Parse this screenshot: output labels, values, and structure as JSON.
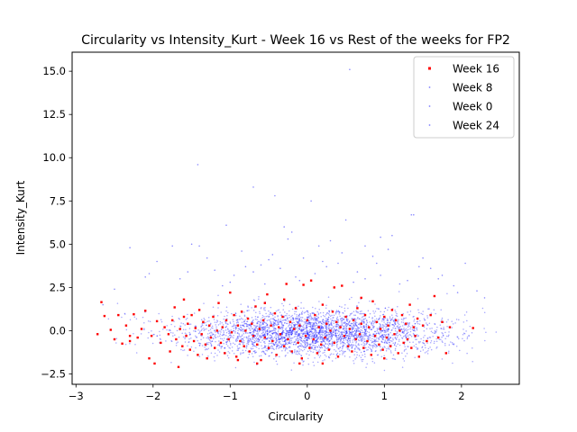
{
  "chart_data": {
    "type": "scatter",
    "title": "Circularity vs Intensity_Kurt - Week 16 vs Rest of the weeks for FP2",
    "xlabel": "Circularity",
    "ylabel": "Intensity_Kurt",
    "xlim": [
      -3.05,
      2.75
    ],
    "ylim": [
      -3.1,
      16.1
    ],
    "xticks": [
      -3,
      -2,
      -1,
      0,
      1,
      2
    ],
    "xtick_labels": [
      "−3",
      "−2",
      "−1",
      "0",
      "1",
      "2"
    ],
    "yticks": [
      -2.5,
      0.0,
      2.5,
      5.0,
      7.5,
      10.0,
      12.5,
      15.0
    ],
    "ytick_labels": [
      "−2.5",
      "0.0",
      "2.5",
      "5.0",
      "7.5",
      "10.0",
      "12.5",
      "15.0"
    ],
    "grid": false,
    "legend_position": "top-right",
    "series_colors": {
      "Week 16": "#ff0000",
      "Week 8": "#0000ff",
      "Week 0": "#0000ff",
      "Week 24": "#0000ff"
    },
    "series": [
      {
        "name": "Week 16",
        "color": "#ff0000",
        "points": [
          [
            -2.72,
            -0.2
          ],
          [
            -2.67,
            1.65
          ],
          [
            -2.63,
            0.85
          ],
          [
            -2.55,
            0.05
          ],
          [
            -2.5,
            -0.5
          ],
          [
            -2.45,
            0.9
          ],
          [
            -2.4,
            -0.75
          ],
          [
            -2.35,
            0.3
          ],
          [
            -2.3,
            -0.6
          ],
          [
            -2.25,
            0.95
          ],
          [
            -2.2,
            -0.4
          ],
          [
            -2.15,
            0.1
          ],
          [
            -2.1,
            1.15
          ],
          [
            -2.05,
            -1.6
          ],
          [
            -2.02,
            -0.3
          ],
          [
            -1.98,
            -1.9
          ],
          [
            -1.95,
            0.55
          ],
          [
            -1.9,
            -0.7
          ],
          [
            -1.85,
            0.2
          ],
          [
            -1.8,
            -0.2
          ],
          [
            -1.78,
            -1.2
          ],
          [
            -1.75,
            0.6
          ],
          [
            -1.72,
            1.35
          ],
          [
            -1.7,
            -0.5
          ],
          [
            -1.67,
            -2.1
          ],
          [
            -1.65,
            0.1
          ],
          [
            -1.62,
            -0.9
          ],
          [
            -1.6,
            1.8
          ],
          [
            -1.57,
            -0.3
          ],
          [
            -1.55,
            0.4
          ],
          [
            -1.52,
            -1.1
          ],
          [
            -1.5,
            0.9
          ],
          [
            -1.47,
            -0.6
          ],
          [
            -1.45,
            0.15
          ],
          [
            -1.42,
            -1.4
          ],
          [
            -1.4,
            1.2
          ],
          [
            -1.37,
            -0.2
          ],
          [
            -1.35,
            0.5
          ],
          [
            -1.32,
            -0.8
          ],
          [
            -1.3,
            -1.6
          ],
          [
            -1.27,
            0.3
          ],
          [
            -1.25,
            -0.4
          ],
          [
            -1.22,
            0.8
          ],
          [
            -1.2,
            -1.0
          ],
          [
            -1.17,
            0.0
          ],
          [
            -1.15,
            1.6
          ],
          [
            -1.12,
            -0.7
          ],
          [
            -1.1,
            0.2
          ],
          [
            -1.07,
            -1.3
          ],
          [
            -1.05,
            0.6
          ],
          [
            -1.02,
            -0.5
          ],
          [
            -1.0,
            2.2
          ],
          [
            -0.98,
            -0.1
          ],
          [
            -0.95,
            0.9
          ],
          [
            -0.92,
            -1.5
          ],
          [
            -0.9,
            0.3
          ],
          [
            -0.87,
            -0.6
          ],
          [
            -0.85,
            1.1
          ],
          [
            -0.82,
            -0.9
          ],
          [
            -0.8,
            0.0
          ],
          [
            -0.77,
            0.7
          ],
          [
            -0.75,
            -1.2
          ],
          [
            -0.72,
            0.4
          ],
          [
            -0.7,
            -0.3
          ],
          [
            -0.67,
            1.4
          ],
          [
            -0.65,
            -0.8
          ],
          [
            -0.62,
            0.1
          ],
          [
            -0.6,
            -1.7
          ],
          [
            -0.57,
            0.6
          ],
          [
            -0.55,
            -0.4
          ],
          [
            -0.52,
            2.1
          ],
          [
            -0.5,
            -1.0
          ],
          [
            -0.47,
            0.3
          ],
          [
            -0.45,
            -0.6
          ],
          [
            -0.42,
            1.0
          ],
          [
            -0.4,
            -1.4
          ],
          [
            -0.37,
            0.2
          ],
          [
            -0.35,
            -0.2
          ],
          [
            -0.32,
            0.8
          ],
          [
            -0.3,
            -0.9
          ],
          [
            -0.27,
            2.7
          ],
          [
            -0.25,
            -0.5
          ],
          [
            -0.22,
            0.5
          ],
          [
            -0.2,
            -1.2
          ],
          [
            -0.17,
            0.1
          ],
          [
            -0.15,
            1.3
          ],
          [
            -0.12,
            -0.7
          ],
          [
            -0.1,
            0.3
          ],
          [
            -0.07,
            -1.6
          ],
          [
            -0.05,
            2.65
          ],
          [
            -0.02,
            -0.3
          ],
          [
            0.0,
            0.6
          ],
          [
            0.03,
            -1.0
          ],
          [
            0.05,
            2.9
          ],
          [
            0.08,
            -0.5
          ],
          [
            0.1,
            0.9
          ],
          [
            0.13,
            -1.3
          ],
          [
            0.15,
            0.2
          ],
          [
            0.18,
            -0.8
          ],
          [
            0.2,
            1.5
          ],
          [
            0.23,
            -0.4
          ],
          [
            0.25,
            0.4
          ],
          [
            0.28,
            -1.1
          ],
          [
            0.3,
            0.0
          ],
          [
            0.33,
            1.1
          ],
          [
            0.35,
            -0.7
          ],
          [
            0.38,
            0.5
          ],
          [
            0.4,
            -1.5
          ],
          [
            0.43,
            0.2
          ],
          [
            0.45,
            2.6
          ],
          [
            0.48,
            -0.3
          ],
          [
            0.5,
            0.8
          ],
          [
            0.53,
            -0.9
          ],
          [
            0.55,
            0.1
          ],
          [
            0.58,
            -1.2
          ],
          [
            0.6,
            0.6
          ],
          [
            0.63,
            -0.5
          ],
          [
            0.65,
            1.3
          ],
          [
            0.68,
            -0.2
          ],
          [
            0.7,
            0.4
          ],
          [
            0.73,
            -1.0
          ],
          [
            0.75,
            0.9
          ],
          [
            0.78,
            -0.6
          ],
          [
            0.8,
            0.2
          ],
          [
            0.83,
            -1.4
          ],
          [
            0.85,
            1.7
          ],
          [
            0.88,
            -0.3
          ],
          [
            0.9,
            0.5
          ],
          [
            0.93,
            -0.8
          ],
          [
            0.95,
            0.1
          ],
          [
            0.98,
            -1.1
          ],
          [
            1.0,
            0.8
          ],
          [
            1.03,
            -0.4
          ],
          [
            1.05,
            0.3
          ],
          [
            1.08,
            -0.9
          ],
          [
            1.1,
            1.2
          ],
          [
            1.13,
            -0.2
          ],
          [
            1.15,
            0.6
          ],
          [
            1.18,
            -1.3
          ],
          [
            1.2,
            0.0
          ],
          [
            1.23,
            0.9
          ],
          [
            1.25,
            -0.7
          ],
          [
            1.28,
            0.4
          ],
          [
            1.3,
            -0.5
          ],
          [
            1.33,
            1.5
          ],
          [
            1.35,
            -1.0
          ],
          [
            1.38,
            0.2
          ],
          [
            1.4,
            -0.3
          ],
          [
            1.43,
            0.7
          ],
          [
            1.45,
            -1.5
          ],
          [
            1.5,
            0.3
          ],
          [
            1.55,
            -0.6
          ],
          [
            1.6,
            0.9
          ],
          [
            1.65,
            2.0
          ],
          [
            1.7,
            -0.4
          ],
          [
            1.75,
            0.5
          ],
          [
            1.8,
            -1.3
          ],
          [
            1.85,
            0.2
          ],
          [
            2.15,
            0.15
          ],
          [
            -0.65,
            -1.9
          ],
          [
            -0.9,
            -1.7
          ],
          [
            0.2,
            -1.9
          ],
          [
            -0.3,
            1.8
          ],
          [
            0.7,
            1.9
          ],
          [
            -1.6,
            0.8
          ],
          [
            -2.3,
            -0.3
          ],
          [
            1.0,
            -1.6
          ],
          [
            -0.1,
            -1.9
          ],
          [
            0.35,
            2.5
          ],
          [
            -0.55,
            1.6
          ]
        ]
      },
      {
        "name": "Week 8",
        "color": "#0000ff",
        "points": [
          [
            0.55,
            15.1
          ],
          [
            -0.42,
            7.8
          ],
          [
            -0.7,
            8.3
          ],
          [
            0.95,
            5.4
          ],
          [
            -0.3,
            6.0
          ],
          [
            0.05,
            7.5
          ],
          [
            -1.05,
            6.1
          ],
          [
            1.1,
            5.5
          ],
          [
            -0.85,
            4.6
          ],
          [
            0.3,
            5.2
          ],
          [
            -2.3,
            4.8
          ],
          [
            -1.5,
            5.0
          ],
          [
            0.5,
            6.4
          ],
          [
            1.35,
            6.7
          ],
          [
            -0.2,
            5.7
          ],
          [
            2.05,
            3.9
          ],
          [
            -1.95,
            4.0
          ],
          [
            0.85,
            4.3
          ],
          [
            -0.6,
            3.8
          ],
          [
            0.15,
            4.9
          ],
          [
            -1.2,
            3.5
          ],
          [
            1.6,
            3.6
          ],
          [
            -0.95,
            3.2
          ],
          [
            0.65,
            3.4
          ],
          [
            1.9,
            2.6
          ],
          [
            -2.5,
            2.4
          ],
          [
            1.3,
            2.9
          ],
          [
            -0.15,
            3.1
          ]
        ]
      },
      {
        "name": "Week 0",
        "color": "#0000ff",
        "points": [
          [
            -1.42,
            9.6
          ],
          [
            -1.75,
            4.9
          ],
          [
            0.45,
            4.5
          ],
          [
            -0.05,
            4.2
          ],
          [
            1.05,
            4.7
          ],
          [
            -0.45,
            4.4
          ],
          [
            1.5,
            4.2
          ],
          [
            -1.3,
            4.2
          ],
          [
            0.25,
            3.7
          ],
          [
            -0.7,
            3.4
          ],
          [
            0.9,
            3.9
          ],
          [
            -1.65,
            3.0
          ],
          [
            1.75,
            3.2
          ],
          [
            -0.35,
            3.6
          ],
          [
            0.75,
            3.0
          ],
          [
            -2.1,
            3.1
          ],
          [
            2.2,
            2.3
          ],
          [
            -1.0,
            2.8
          ],
          [
            0.1,
            3.3
          ],
          [
            1.2,
            2.7
          ]
        ]
      },
      {
        "name": "Week 24",
        "color": "#0000ff",
        "points": [
          [
            1.38,
            6.7
          ],
          [
            -0.25,
            5.3
          ],
          [
            0.75,
            4.9
          ],
          [
            -1.4,
            4.9
          ],
          [
            0.4,
            3.9
          ],
          [
            -0.5,
            4.1
          ],
          [
            1.45,
            3.7
          ],
          [
            -2.05,
            3.3
          ],
          [
            0.2,
            4.0
          ],
          [
            -0.8,
            3.7
          ],
          [
            1.7,
            3.0
          ],
          [
            -1.55,
            3.4
          ],
          [
            0.95,
            3.2
          ],
          [
            -0.1,
            2.9
          ],
          [
            2.3,
            1.9
          ],
          [
            -2.65,
            1.5
          ],
          [
            0.6,
            2.8
          ],
          [
            -1.1,
            2.6
          ],
          [
            1.95,
            2.2
          ],
          [
            -0.55,
            2.7
          ]
        ]
      }
    ],
    "background_density": {
      "series": [
        "Week 8",
        "Week 0",
        "Week 24"
      ],
      "x_range": [
        -2.75,
        2.45
      ],
      "y_range": [
        -2.4,
        3.2
      ],
      "center": [
        0.1,
        -0.3
      ]
    }
  }
}
